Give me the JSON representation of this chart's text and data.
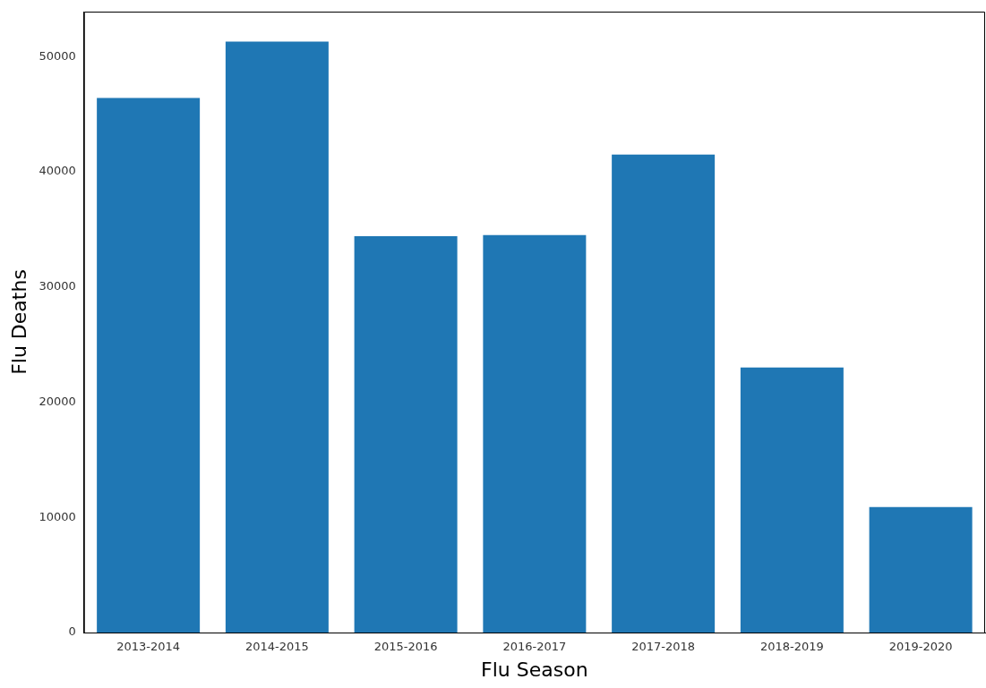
{
  "chart_data": {
    "type": "bar",
    "xlabel": "Flu Season",
    "ylabel": "Flu Deaths",
    "categories": [
      "2013-2014",
      "2014-2015",
      "2015-2016",
      "2016-2017",
      "2017-2018",
      "2018-2019",
      "2019-2020"
    ],
    "values": [
      46400,
      51300,
      34400,
      34500,
      41500,
      23000,
      10900
    ],
    "color": "#1f77b4",
    "ylim": [
      0,
      53900
    ],
    "yticks": [
      0,
      10000,
      20000,
      30000,
      40000,
      50000
    ],
    "grid": false,
    "legend": false
  }
}
